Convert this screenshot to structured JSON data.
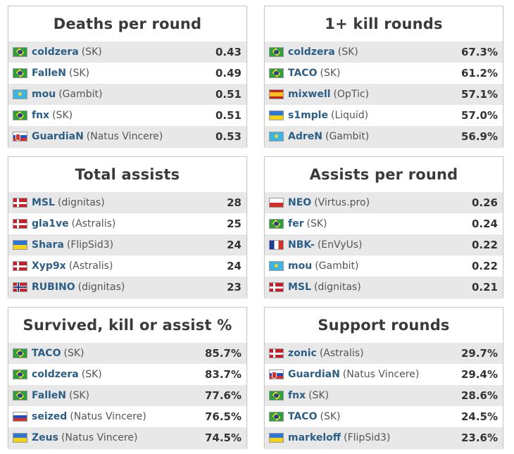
{
  "panels": [
    {
      "title": "Deaths per round",
      "rows": [
        {
          "flag": "br",
          "player": "coldzera",
          "team": "(SK)",
          "value": "0.43"
        },
        {
          "flag": "br",
          "player": "FalleN",
          "team": "(SK)",
          "value": "0.49"
        },
        {
          "flag": "kz",
          "player": "mou",
          "team": "(Gambit)",
          "value": "0.51"
        },
        {
          "flag": "br",
          "player": "fnx",
          "team": "(SK)",
          "value": "0.51"
        },
        {
          "flag": "sk",
          "player": "GuardiaN",
          "team": "(Natus Vincere)",
          "value": "0.53"
        }
      ]
    },
    {
      "title": "1+ kill rounds",
      "rows": [
        {
          "flag": "br",
          "player": "coldzera",
          "team": "(SK)",
          "value": "67.3%"
        },
        {
          "flag": "br",
          "player": "TACO",
          "team": "(SK)",
          "value": "61.2%"
        },
        {
          "flag": "es",
          "player": "mixwell",
          "team": "(OpTic)",
          "value": "57.1%"
        },
        {
          "flag": "ua",
          "player": "s1mple",
          "team": "(Liquid)",
          "value": "57.0%"
        },
        {
          "flag": "kz",
          "player": "AdreN",
          "team": "(Gambit)",
          "value": "56.9%"
        }
      ]
    },
    {
      "title": "Total assists",
      "rows": [
        {
          "flag": "dk",
          "player": "MSL",
          "team": "(dignitas)",
          "value": "28"
        },
        {
          "flag": "dk",
          "player": "gla1ve",
          "team": "(Astralis)",
          "value": "25"
        },
        {
          "flag": "ua",
          "player": "Shara",
          "team": "(FlipSid3)",
          "value": "24"
        },
        {
          "flag": "dk",
          "player": "Xyp9x",
          "team": "(Astralis)",
          "value": "24"
        },
        {
          "flag": "no",
          "player": "RUBINO",
          "team": "(dignitas)",
          "value": "23"
        }
      ]
    },
    {
      "title": "Assists per round",
      "rows": [
        {
          "flag": "pl",
          "player": "NEO",
          "team": "(Virtus.pro)",
          "value": "0.26"
        },
        {
          "flag": "br",
          "player": "fer",
          "team": "(SK)",
          "value": "0.24"
        },
        {
          "flag": "fr",
          "player": "NBK-",
          "team": "(EnVyUs)",
          "value": "0.22"
        },
        {
          "flag": "kz",
          "player": "mou",
          "team": "(Gambit)",
          "value": "0.22"
        },
        {
          "flag": "dk",
          "player": "MSL",
          "team": "(dignitas)",
          "value": "0.21"
        }
      ]
    },
    {
      "title": "Survived, kill or assist %",
      "rows": [
        {
          "flag": "br",
          "player": "TACO",
          "team": "(SK)",
          "value": "85.7%"
        },
        {
          "flag": "br",
          "player": "coldzera",
          "team": "(SK)",
          "value": "83.7%"
        },
        {
          "flag": "br",
          "player": "FalleN",
          "team": "(SK)",
          "value": "77.6%"
        },
        {
          "flag": "ru",
          "player": "seized",
          "team": "(Natus Vincere)",
          "value": "76.5%"
        },
        {
          "flag": "ua",
          "player": "Zeus",
          "team": "(Natus Vincere)",
          "value": "74.5%"
        }
      ]
    },
    {
      "title": "Support rounds",
      "rows": [
        {
          "flag": "dk",
          "player": "zonic",
          "team": "(Astralis)",
          "value": "29.7%"
        },
        {
          "flag": "sk",
          "player": "GuardiaN",
          "team": "(Natus Vincere)",
          "value": "29.4%"
        },
        {
          "flag": "br",
          "player": "fnx",
          "team": "(SK)",
          "value": "28.6%"
        },
        {
          "flag": "br",
          "player": "TACO",
          "team": "(SK)",
          "value": "24.5%"
        },
        {
          "flag": "ua",
          "player": "markeloff",
          "team": "(FlipSid3)",
          "value": "23.6%"
        }
      ]
    }
  ]
}
